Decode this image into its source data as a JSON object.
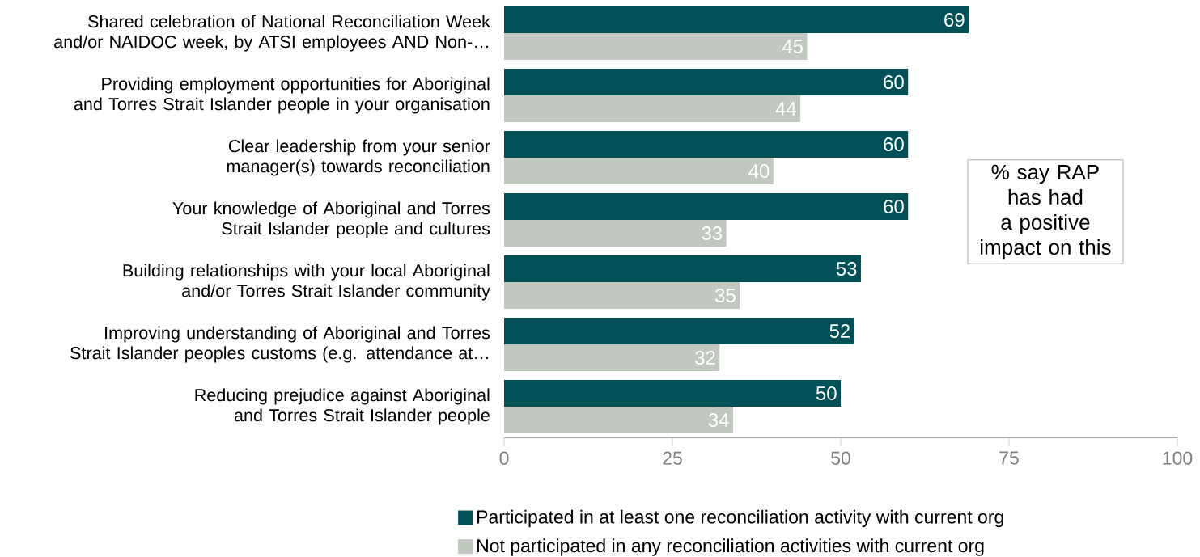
{
  "chart_data": {
    "type": "bar",
    "orientation": "horizontal",
    "categories": [
      "Shared celebration of National Reconciliation Week and/or NAIDOC week, by ATSI employees AND Non-…",
      "Providing employment opportunities for Aboriginal and Torres Strait Islander people in your organisation",
      "Clear leadership from your senior manager(s) towards reconciliation",
      "Your knowledge of Aboriginal and Torres Strait Islander people and cultures",
      "Building relationships with your local Aboriginal and/or Torres Strait Islander community",
      "Improving understanding of Aboriginal and Torres Strait Islander peoples customs (e.g. attendance at…",
      "Reducing prejudice against Aboriginal and Torres Strait Islander people"
    ],
    "series": [
      {
        "name": "Participated in at least one reconciliation activity with current org",
        "color": "#005058",
        "values": [
          69,
          60,
          60,
          60,
          53,
          52,
          50
        ]
      },
      {
        "name": "Not participated in any reconciliation activities with current org",
        "color": "#c0c8bf",
        "values": [
          45,
          44,
          40,
          33,
          35,
          32,
          34
        ]
      }
    ],
    "xlim": [
      0,
      100
    ],
    "xticks": [
      0,
      25,
      50,
      75,
      100
    ],
    "data_labels": true,
    "legend": "bottom",
    "grid": false,
    "annotations": [
      "% say RAP has had a positive impact on this"
    ]
  }
}
